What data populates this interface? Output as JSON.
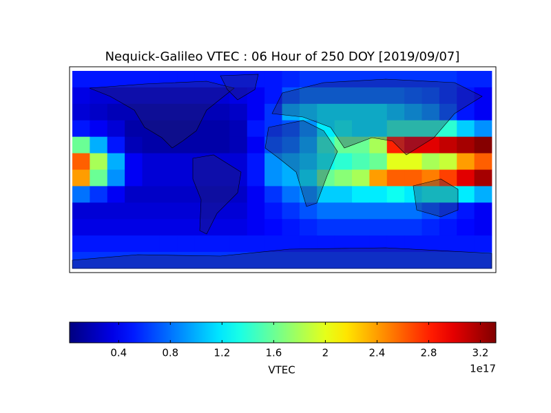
{
  "chart_data": {
    "type": "heatmap",
    "title": "Nequick-Galileo VTEC : 06 Hour of 250 DOY [2019/09/07]",
    "colorbar_label": "VTEC",
    "colorbar_offset": "1e17",
    "colormap": "jet",
    "clim": [
      0.02,
      3.32
    ],
    "cticks": [
      0.4,
      0.8,
      1.2,
      1.6,
      2.0,
      2.4,
      2.8,
      3.2
    ],
    "z": [
      [
        0.5,
        0.5,
        0.5,
        0.5,
        0.5,
        0.5,
        0.5,
        0.5,
        0.5,
        0.5,
        0.5,
        0.5,
        0.55,
        0.6,
        0.6,
        0.6,
        0.6,
        0.6,
        0.6,
        0.6,
        0.6,
        0.6,
        0.55,
        0.55
      ],
      [
        0.35,
        0.3,
        0.3,
        0.3,
        0.3,
        0.3,
        0.3,
        0.3,
        0.3,
        0.35,
        0.4,
        0.5,
        0.7,
        0.8,
        0.8,
        0.8,
        0.8,
        0.8,
        0.8,
        0.75,
        0.7,
        0.6,
        0.5,
        0.4
      ],
      [
        0.3,
        0.25,
        0.2,
        0.2,
        0.2,
        0.2,
        0.2,
        0.2,
        0.2,
        0.25,
        0.4,
        0.6,
        1.0,
        1.1,
        1.2,
        1.2,
        1.2,
        1.2,
        1.1,
        1.0,
        0.9,
        0.7,
        0.5,
        0.4
      ],
      [
        0.5,
        0.4,
        0.3,
        0.15,
        0.15,
        0.15,
        0.15,
        0.15,
        0.15,
        0.2,
        0.5,
        0.6,
        0.7,
        0.9,
        1.2,
        1.3,
        1.2,
        1.2,
        1.4,
        1.4,
        1.4,
        1.4,
        1.1,
        0.9
      ],
      [
        1.6,
        1.0,
        0.5,
        0.2,
        0.15,
        0.15,
        0.15,
        0.15,
        0.15,
        0.2,
        0.4,
        0.7,
        0.8,
        1.0,
        1.4,
        1.6,
        1.6,
        1.8,
        2.8,
        3.0,
        3.0,
        3.1,
        3.2,
        3.3
      ],
      [
        2.6,
        1.8,
        1.0,
        0.4,
        0.3,
        0.3,
        0.3,
        0.3,
        0.3,
        0.3,
        0.5,
        0.9,
        1.0,
        1.1,
        1.3,
        1.4,
        1.5,
        1.6,
        2.0,
        2.0,
        1.8,
        1.9,
        2.4,
        2.6
      ],
      [
        2.4,
        1.6,
        0.9,
        0.4,
        0.3,
        0.3,
        0.3,
        0.3,
        0.3,
        0.3,
        0.5,
        0.9,
        1.0,
        1.2,
        1.6,
        1.7,
        1.8,
        2.4,
        2.6,
        2.6,
        2.5,
        2.7,
        3.0,
        3.2
      ],
      [
        0.8,
        0.6,
        0.4,
        0.25,
        0.25,
        0.25,
        0.25,
        0.25,
        0.25,
        0.25,
        0.4,
        0.6,
        0.8,
        0.9,
        1.1,
        1.1,
        1.2,
        1.2,
        1.3,
        1.2,
        1.3,
        1.3,
        1.2,
        1.0
      ],
      [
        0.3,
        0.3,
        0.3,
        0.3,
        0.3,
        0.3,
        0.3,
        0.3,
        0.3,
        0.3,
        0.4,
        0.5,
        0.6,
        0.7,
        0.8,
        0.8,
        0.8,
        0.8,
        0.8,
        0.8,
        0.7,
        0.6,
        0.5,
        0.4
      ],
      [
        0.35,
        0.35,
        0.35,
        0.35,
        0.35,
        0.35,
        0.35,
        0.35,
        0.35,
        0.35,
        0.4,
        0.45,
        0.5,
        0.55,
        0.6,
        0.6,
        0.6,
        0.6,
        0.6,
        0.6,
        0.55,
        0.5,
        0.45,
        0.4
      ],
      [
        0.5,
        0.5,
        0.5,
        0.5,
        0.5,
        0.5,
        0.5,
        0.5,
        0.5,
        0.5,
        0.5,
        0.5,
        0.5,
        0.5,
        0.5,
        0.5,
        0.5,
        0.5,
        0.5,
        0.5,
        0.5,
        0.5,
        0.5,
        0.5
      ],
      [
        0.6,
        0.6,
        0.6,
        0.6,
        0.6,
        0.6,
        0.6,
        0.6,
        0.6,
        0.6,
        0.6,
        0.6,
        0.6,
        0.6,
        0.6,
        0.6,
        0.6,
        0.6,
        0.6,
        0.6,
        0.6,
        0.6,
        0.6,
        0.6
      ]
    ]
  }
}
